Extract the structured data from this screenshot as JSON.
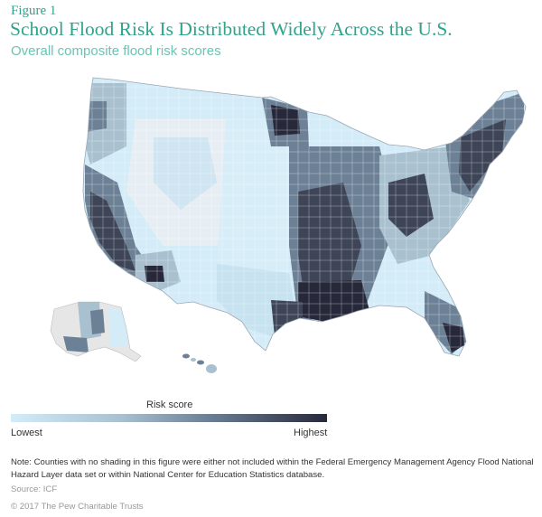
{
  "figure_label": "Figure 1",
  "title": "School Flood Risk Is Distributed Widely Across the U.S.",
  "subtitle": "Overall composite flood risk scores",
  "map": {
    "regions": [
      "contiguous-us",
      "alaska",
      "hawaii"
    ],
    "no_data_color": "#e6e6e6",
    "border_color": "#ffffff"
  },
  "legend": {
    "title": "Risk score",
    "low_label": "Lowest",
    "high_label": "Highest",
    "colors": [
      "#d3ecf8",
      "#a9c0cf",
      "#6d8196",
      "#27293a"
    ]
  },
  "note": "Note: Counties with no shading in this figure were either not included within the Federal Emergency Management Agency Flood National Hazard Layer data set or within National Center for Education Statistics database.",
  "source": "Source: ICF",
  "copyright": "© 2017 The Pew Charitable Trusts"
}
